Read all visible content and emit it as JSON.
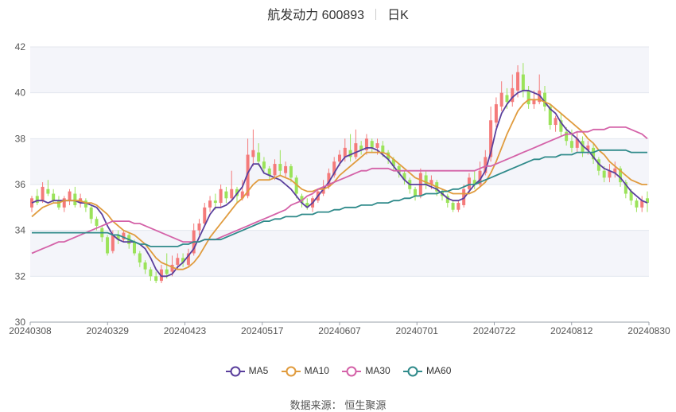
{
  "header": {
    "title": "航发动力 600893",
    "period": "日K"
  },
  "source": {
    "label": "数据来源：",
    "name": "恒生聚源"
  },
  "colors": {
    "up": "#f47a7a",
    "down": "#9be35a",
    "ma5": "#5a3f9c",
    "ma10": "#e09b3d",
    "ma30": "#d462a8",
    "ma60": "#2f8a8a",
    "grid": "#e3e7ef",
    "band": "#f4f5fa",
    "axis": "#555555"
  },
  "chart_data": {
    "type": "candlestick",
    "ylim": [
      30,
      42
    ],
    "yticks": [
      30,
      32,
      34,
      36,
      38,
      40,
      42
    ],
    "x_tick_labels": [
      "20240308",
      "20240329",
      "20240423",
      "20240517",
      "20240607",
      "20240701",
      "20240722",
      "20240812",
      "20240830"
    ],
    "grid": true,
    "legend_position": "bottom",
    "legend": [
      "MA5",
      "MA10",
      "MA30",
      "MA60"
    ],
    "candles": [
      [
        35.0,
        35.4,
        34.8,
        35.5
      ],
      [
        35.5,
        35.2,
        35.1,
        35.8
      ],
      [
        35.3,
        35.9,
        35.2,
        36.1
      ],
      [
        35.8,
        35.6,
        35.5,
        36.2
      ],
      [
        35.6,
        35.3,
        35.2,
        35.8
      ],
      [
        35.3,
        35.0,
        34.9,
        35.5
      ],
      [
        35.0,
        35.4,
        34.8,
        35.5
      ],
      [
        35.3,
        35.7,
        35.1,
        35.8
      ],
      [
        35.6,
        35.1,
        35.0,
        35.9
      ],
      [
        35.2,
        35.4,
        35.0,
        35.6
      ],
      [
        35.3,
        35.0,
        34.8,
        35.4
      ],
      [
        35.0,
        34.5,
        34.3,
        35.1
      ],
      [
        34.5,
        34.2,
        34.0,
        34.6
      ],
      [
        34.1,
        33.7,
        33.5,
        34.2
      ],
      [
        33.7,
        33.0,
        32.9,
        33.8
      ],
      [
        33.1,
        33.8,
        33.0,
        34.0
      ],
      [
        33.8,
        33.6,
        33.4,
        34.0
      ],
      [
        33.6,
        33.9,
        33.5,
        34.0
      ],
      [
        33.8,
        33.4,
        33.2,
        33.9
      ],
      [
        33.5,
        33.0,
        32.9,
        33.6
      ],
      [
        33.0,
        32.6,
        32.4,
        33.1
      ],
      [
        32.6,
        32.3,
        32.1,
        32.7
      ],
      [
        32.3,
        32.0,
        31.8,
        32.4
      ],
      [
        32.0,
        31.8,
        31.7,
        32.2
      ],
      [
        31.8,
        32.3,
        31.7,
        32.5
      ],
      [
        32.3,
        32.1,
        31.9,
        33.0
      ],
      [
        32.2,
        32.5,
        32.0,
        32.9
      ],
      [
        32.5,
        32.8,
        32.3,
        33.0
      ],
      [
        32.8,
        32.6,
        32.4,
        33.0
      ],
      [
        32.5,
        33.0,
        32.4,
        33.2
      ],
      [
        33.0,
        34.0,
        32.9,
        34.3
      ],
      [
        34.0,
        34.3,
        33.8,
        34.5
      ],
      [
        34.3,
        35.0,
        34.2,
        35.2
      ],
      [
        35.0,
        35.3,
        34.8,
        35.5
      ],
      [
        35.3,
        35.2,
        34.9,
        35.6
      ],
      [
        35.2,
        35.8,
        35.0,
        36.0
      ],
      [
        35.7,
        35.4,
        35.2,
        35.9
      ],
      [
        35.4,
        35.8,
        35.3,
        36.6
      ],
      [
        35.8,
        35.5,
        35.2,
        35.9
      ],
      [
        35.4,
        35.7,
        35.3,
        36.2
      ],
      [
        35.5,
        37.3,
        35.4,
        38.0
      ],
      [
        37.2,
        37.5,
        36.8,
        38.4
      ],
      [
        37.4,
        37.0,
        36.8,
        37.8
      ],
      [
        37.0,
        36.7,
        36.5,
        37.2
      ],
      [
        36.7,
        36.4,
        36.2,
        36.8
      ],
      [
        36.4,
        36.9,
        36.2,
        37.1
      ],
      [
        36.9,
        36.6,
        36.4,
        37.5
      ],
      [
        36.5,
        36.8,
        36.3,
        37.0
      ],
      [
        36.8,
        36.3,
        36.1,
        36.9
      ],
      [
        36.3,
        35.6,
        35.4,
        36.4
      ],
      [
        35.5,
        35.2,
        35.0,
        35.6
      ],
      [
        35.2,
        35.0,
        34.9,
        35.4
      ],
      [
        35.0,
        35.4,
        34.8,
        35.5
      ],
      [
        35.3,
        35.7,
        35.2,
        35.8
      ],
      [
        35.6,
        35.9,
        35.5,
        36.2
      ],
      [
        35.9,
        36.5,
        35.8,
        36.7
      ],
      [
        36.4,
        37.0,
        36.3,
        37.2
      ],
      [
        37.0,
        37.3,
        36.8,
        37.5
      ],
      [
        37.2,
        37.6,
        37.0,
        38.0
      ],
      [
        37.5,
        37.2,
        37.0,
        38.2
      ],
      [
        37.2,
        37.8,
        37.1,
        38.4
      ],
      [
        37.7,
        37.5,
        37.3,
        37.9
      ],
      [
        37.5,
        38.0,
        37.3,
        38.2
      ],
      [
        37.9,
        37.6,
        37.4,
        38.0
      ],
      [
        37.6,
        37.8,
        37.3,
        38.0
      ],
      [
        37.7,
        37.4,
        37.2,
        37.9
      ],
      [
        37.4,
        37.1,
        36.9,
        37.5
      ],
      [
        37.1,
        36.8,
        36.6,
        37.2
      ],
      [
        36.8,
        36.5,
        36.3,
        36.9
      ],
      [
        36.5,
        36.2,
        36.0,
        36.6
      ],
      [
        36.2,
        35.8,
        35.6,
        36.3
      ],
      [
        35.8,
        35.5,
        35.3,
        35.9
      ],
      [
        35.5,
        36.5,
        35.4,
        36.7
      ],
      [
        36.4,
        36.0,
        35.8,
        36.6
      ],
      [
        36.0,
        36.2,
        35.8,
        36.4
      ],
      [
        36.1,
        35.7,
        35.5,
        36.2
      ],
      [
        35.7,
        35.5,
        35.3,
        35.8
      ],
      [
        35.5,
        35.2,
        35.0,
        35.6
      ],
      [
        35.2,
        34.9,
        34.8,
        35.3
      ],
      [
        34.9,
        35.2,
        34.8,
        35.3
      ],
      [
        35.1,
        35.8,
        35.0,
        36.0
      ],
      [
        35.8,
        36.3,
        35.6,
        36.5
      ],
      [
        36.2,
        36.0,
        35.8,
        36.6
      ],
      [
        36.0,
        36.6,
        35.9,
        37.0
      ],
      [
        36.5,
        37.2,
        36.4,
        37.5
      ],
      [
        37.2,
        38.8,
        37.0,
        39.4
      ],
      [
        38.7,
        39.5,
        38.5,
        39.8
      ],
      [
        39.4,
        40.0,
        39.2,
        40.5
      ],
      [
        39.9,
        39.6,
        39.3,
        40.2
      ],
      [
        39.6,
        40.2,
        39.4,
        40.8
      ],
      [
        40.1,
        40.9,
        39.8,
        41.2
      ],
      [
        40.8,
        40.1,
        39.8,
        41.3
      ],
      [
        40.1,
        39.5,
        39.3,
        40.3
      ],
      [
        39.5,
        39.7,
        39.3,
        40.1
      ],
      [
        39.6,
        40.1,
        39.5,
        40.8
      ],
      [
        40.0,
        39.4,
        39.2,
        40.3
      ],
      [
        39.4,
        38.6,
        38.4,
        39.5
      ],
      [
        38.6,
        38.9,
        38.3,
        39.0
      ],
      [
        38.8,
        38.3,
        38.1,
        39.1
      ],
      [
        38.3,
        37.9,
        37.7,
        38.5
      ],
      [
        37.9,
        37.6,
        37.4,
        38.4
      ],
      [
        37.6,
        38.0,
        37.4,
        38.3
      ],
      [
        37.9,
        37.4,
        37.2,
        38.1
      ],
      [
        37.5,
        37.7,
        37.3,
        37.9
      ],
      [
        37.6,
        37.1,
        36.9,
        37.8
      ],
      [
        37.1,
        36.6,
        36.4,
        37.2
      ],
      [
        36.6,
        36.3,
        36.1,
        36.8
      ],
      [
        36.3,
        36.6,
        36.1,
        36.9
      ],
      [
        36.5,
        36.7,
        36.3,
        37.0
      ],
      [
        36.7,
        36.1,
        35.9,
        36.8
      ],
      [
        36.1,
        35.6,
        35.4,
        36.2
      ],
      [
        35.7,
        35.3,
        35.1,
        35.8
      ],
      [
        35.3,
        35.0,
        34.8,
        35.4
      ],
      [
        35.0,
        35.3,
        34.8,
        35.5
      ],
      [
        35.4,
        35.2,
        34.8,
        35.7
      ]
    ],
    "series": [
      {
        "name": "MA5",
        "values": [
          35.2,
          35.3,
          35.3,
          35.2,
          35.3,
          35.3,
          35.3,
          35.3,
          35.3,
          35.2,
          35.2,
          35.1,
          35.0,
          34.7,
          34.2,
          33.8,
          33.6,
          33.5,
          33.5,
          33.5,
          33.4,
          33.2,
          32.8,
          32.3,
          32.0,
          32.0,
          32.1,
          32.4,
          32.6,
          32.9,
          33.2,
          33.7,
          34.2,
          34.7,
          35.0,
          35.0,
          35.1,
          35.3,
          35.6,
          35.9,
          36.5,
          36.9,
          36.9,
          36.5,
          36.4,
          36.3,
          36.2,
          36.0,
          35.8,
          35.5,
          35.2,
          35.0,
          35.2,
          35.5,
          35.8,
          36.1,
          36.5,
          36.9,
          37.2,
          37.3,
          37.4,
          37.5,
          37.6,
          37.6,
          37.5,
          37.3,
          37.1,
          36.8,
          36.5,
          36.2,
          36.0,
          36.0,
          36.0,
          36.0,
          35.9,
          35.8,
          35.6,
          35.4,
          35.3,
          35.3,
          35.4,
          35.7,
          36.0,
          36.2,
          36.6,
          37.4,
          38.4,
          39.1,
          39.5,
          39.8,
          40.0,
          40.1,
          40.1,
          40.0,
          39.9,
          39.6,
          39.3,
          39.1,
          38.7,
          38.4,
          38.2,
          38.0,
          37.7,
          37.5,
          37.2,
          36.9,
          36.7,
          36.6,
          36.5,
          36.3,
          36.0,
          35.7,
          35.5,
          35.3,
          35.2
        ]
      },
      {
        "name": "MA10",
        "values": [
          34.6,
          34.8,
          35.0,
          35.1,
          35.2,
          35.2,
          35.3,
          35.3,
          35.3,
          35.3,
          35.2,
          35.2,
          35.1,
          34.9,
          34.7,
          34.4,
          34.2,
          34.0,
          33.9,
          33.8,
          33.6,
          33.4,
          33.1,
          32.8,
          32.6,
          32.5,
          32.4,
          32.3,
          32.3,
          32.4,
          32.6,
          32.9,
          33.3,
          33.7,
          34.0,
          34.3,
          34.6,
          34.9,
          35.2,
          35.4,
          35.7,
          36.0,
          36.2,
          36.2,
          36.2,
          36.3,
          36.4,
          36.3,
          36.2,
          36.0,
          35.8,
          35.7,
          35.7,
          35.8,
          35.8,
          35.9,
          36.1,
          36.4,
          36.6,
          36.8,
          37.0,
          37.2,
          37.4,
          37.4,
          37.4,
          37.4,
          37.3,
          37.1,
          36.9,
          36.7,
          36.5,
          36.3,
          36.2,
          36.1,
          36.0,
          35.9,
          35.8,
          35.7,
          35.6,
          35.6,
          35.6,
          35.6,
          35.7,
          35.9,
          36.1,
          36.5,
          37.0,
          37.6,
          38.2,
          38.7,
          39.2,
          39.5,
          39.7,
          39.7,
          39.7,
          39.6,
          39.5,
          39.3,
          39.1,
          38.9,
          38.7,
          38.5,
          38.3,
          38.0,
          37.8,
          37.5,
          37.3,
          37.0,
          36.8,
          36.6,
          36.4,
          36.2,
          36.1,
          36.0,
          36.0
        ]
      },
      {
        "name": "MA30",
        "values": [
          33.0,
          33.1,
          33.2,
          33.3,
          33.4,
          33.5,
          33.5,
          33.6,
          33.7,
          33.8,
          33.9,
          34.0,
          34.1,
          34.2,
          34.3,
          34.4,
          34.4,
          34.4,
          34.4,
          34.3,
          34.3,
          34.2,
          34.1,
          34.0,
          33.9,
          33.8,
          33.7,
          33.6,
          33.5,
          33.5,
          33.5,
          33.5,
          33.6,
          33.6,
          33.6,
          33.7,
          33.8,
          33.9,
          34.0,
          34.1,
          34.2,
          34.3,
          34.4,
          34.5,
          34.6,
          34.7,
          34.8,
          34.9,
          35.1,
          35.2,
          35.3,
          35.5,
          35.6,
          35.8,
          35.9,
          36.0,
          36.1,
          36.2,
          36.3,
          36.4,
          36.5,
          36.6,
          36.6,
          36.7,
          36.7,
          36.7,
          36.7,
          36.6,
          36.6,
          36.6,
          36.6,
          36.6,
          36.6,
          36.6,
          36.6,
          36.6,
          36.6,
          36.6,
          36.6,
          36.6,
          36.6,
          36.6,
          36.6,
          36.7,
          36.8,
          36.8,
          36.9,
          37.0,
          37.1,
          37.2,
          37.3,
          37.4,
          37.5,
          37.6,
          37.7,
          37.8,
          37.9,
          38.0,
          38.1,
          38.2,
          38.2,
          38.3,
          38.3,
          38.3,
          38.4,
          38.4,
          38.4,
          38.5,
          38.5,
          38.5,
          38.5,
          38.4,
          38.3,
          38.2,
          38.0
        ]
      },
      {
        "name": "MA60",
        "values": [
          33.9,
          33.9,
          33.9,
          33.9,
          33.9,
          33.9,
          33.9,
          33.9,
          33.9,
          33.9,
          33.9,
          33.9,
          33.9,
          33.9,
          33.9,
          33.8,
          33.8,
          33.7,
          33.6,
          33.5,
          33.4,
          33.4,
          33.3,
          33.3,
          33.3,
          33.3,
          33.3,
          33.3,
          33.4,
          33.4,
          33.5,
          33.5,
          33.6,
          33.6,
          33.6,
          33.6,
          33.7,
          33.8,
          33.9,
          34.0,
          34.1,
          34.2,
          34.3,
          34.4,
          34.4,
          34.5,
          34.5,
          34.6,
          34.6,
          34.6,
          34.7,
          34.7,
          34.7,
          34.8,
          34.8,
          34.8,
          34.9,
          34.9,
          35.0,
          35.0,
          35.0,
          35.1,
          35.1,
          35.1,
          35.2,
          35.2,
          35.2,
          35.3,
          35.3,
          35.4,
          35.4,
          35.5,
          35.5,
          35.6,
          35.6,
          35.6,
          35.7,
          35.7,
          35.8,
          35.8,
          35.9,
          36.0,
          36.0,
          36.1,
          36.2,
          36.3,
          36.4,
          36.5,
          36.6,
          36.7,
          36.8,
          36.9,
          37.0,
          37.1,
          37.1,
          37.2,
          37.2,
          37.2,
          37.3,
          37.3,
          37.3,
          37.4,
          37.4,
          37.4,
          37.4,
          37.5,
          37.5,
          37.5,
          37.5,
          37.5,
          37.5,
          37.4,
          37.4,
          37.4,
          37.4
        ]
      }
    ]
  }
}
